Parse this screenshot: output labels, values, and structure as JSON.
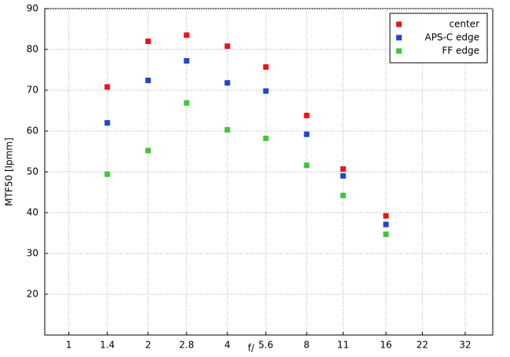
{
  "chart_data": {
    "type": "scatter",
    "x": [
      1.4,
      2,
      2.8,
      4,
      5.6,
      8,
      11,
      16
    ],
    "series": [
      {
        "name": "center",
        "color": "#e8141a",
        "values": [
          70.8,
          82,
          83.5,
          80.8,
          75.7,
          63.8,
          50.7,
          39.2
        ]
      },
      {
        "name": "APS-C edge",
        "color": "#1e46d2",
        "values": [
          62,
          72.4,
          77.2,
          71.8,
          69.8,
          59.2,
          49,
          37.1
        ]
      },
      {
        "name": "FF edge",
        "color": "#3cc83c",
        "values": [
          49.4,
          55.2,
          66.9,
          60.3,
          58.2,
          51.6,
          44.2,
          34.7
        ]
      }
    ],
    "xlabel": "f/",
    "ylabel": "MTF50 [lpmm]",
    "xlim": [
      0.81,
      40.7
    ],
    "xscale": "log",
    "xticks": [
      1,
      1.4,
      2,
      2.8,
      4,
      5.6,
      8,
      11,
      16,
      22,
      32
    ],
    "ylim": [
      10,
      90
    ],
    "yticks": [
      20,
      30,
      40,
      50,
      60,
      70,
      80,
      90
    ],
    "grid": true,
    "legend": "top-right"
  }
}
